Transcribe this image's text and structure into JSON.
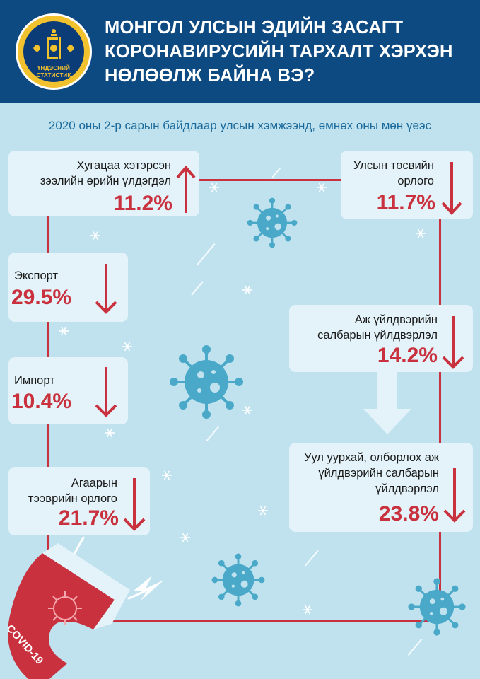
{
  "header": {
    "title_lines": [
      "МОНГОЛ УЛСЫН ЭДИЙН ЗАСАГТ",
      "КОРОНАВИРУСИЙН ТАРХАЛТ ХЭРХЭН",
      "НӨЛӨӨЛЖ БАЙНА ВЭ?"
    ],
    "logo_lines": [
      "ҮНДЭСНИЙ",
      "СТАТИСТИК"
    ]
  },
  "subtitle": "2020 оны 2-р сарын байдлаар улсын хэмжээнд, өмнөх оны мөн үеэс",
  "indicators": {
    "overdue_loans": {
      "label_lines": [
        "Хугацаа хэтэрсэн",
        "зээлийн өрийн үлдэгдэл"
      ],
      "value": "11.2%",
      "direction": "up"
    },
    "budget_revenue": {
      "label_lines": [
        "Улсын төсвийн",
        "орлого"
      ],
      "value": "11.7%",
      "direction": "down"
    },
    "export": {
      "label_lines": [
        "Экспорт"
      ],
      "value": "29.5%",
      "direction": "down"
    },
    "industrial_production": {
      "label_lines": [
        "Аж үйлдвэрийн",
        "салбарын үйлдвэрлэл"
      ],
      "value": "14.2%",
      "direction": "down"
    },
    "import": {
      "label_lines": [
        "Импорт"
      ],
      "value": "10.4%",
      "direction": "down"
    },
    "air_transport_revenue": {
      "label_lines": [
        "Агаарын",
        "тээврийн орлого"
      ],
      "value": "21.7%",
      "direction": "down"
    },
    "mining_production": {
      "label_lines": [
        "Уул уурхай, олборлох аж",
        "үйлдвэрийн салбарын",
        "үйлдвэрлэл"
      ],
      "value": "23.8%",
      "direction": "down"
    }
  },
  "magnet_label": "COVID-19",
  "colors": {
    "header_bg": "#0d4a82",
    "page_bg": "#bfe2ee",
    "accent_red": "#c8313d",
    "card_bg": "#e3f3f9",
    "subtitle": "#1b6a9c",
    "virus": "#4aa9c9"
  }
}
